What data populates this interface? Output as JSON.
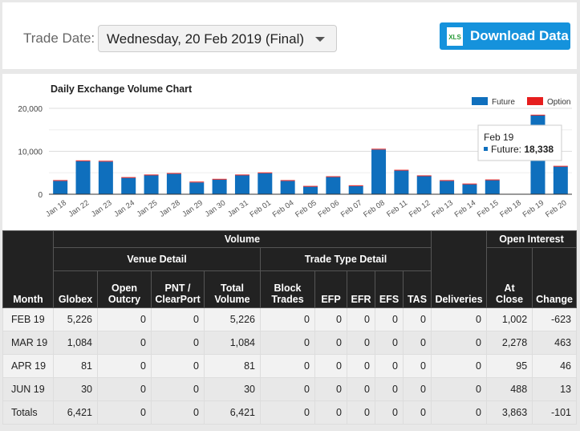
{
  "header": {
    "trade_date_label": "Trade Date:",
    "trade_date_value": "Wednesday, 20 Feb 2019 (Final)",
    "download_label": "Download Data",
    "xls_icon_text": "XLS"
  },
  "chart_data": {
    "type": "bar",
    "title": "Daily Exchange Volume Chart",
    "categories": [
      "Jan 18",
      "Jan 22",
      "Jan 23",
      "Jan 24",
      "Jan 25",
      "Jan 28",
      "Jan 29",
      "Jan 30",
      "Jan 31",
      "Feb 01",
      "Feb 04",
      "Feb 05",
      "Feb 06",
      "Feb 07",
      "Feb 08",
      "Feb 11",
      "Feb 12",
      "Feb 13",
      "Feb 14",
      "Feb 15",
      "Feb 18",
      "Feb 19",
      "Feb 20"
    ],
    "series": [
      {
        "name": "Future",
        "color": "#0f6fbd",
        "values": [
          3100,
          7700,
          7600,
          3800,
          4400,
          4750,
          2750,
          3400,
          4400,
          4900,
          3100,
          1750,
          4000,
          1900,
          10400,
          5500,
          4200,
          3100,
          2300,
          3250,
          0,
          18338,
          6421
        ]
      },
      {
        "name": "Option",
        "color": "#e61e1e",
        "values": [
          0,
          0,
          0,
          0,
          0,
          0,
          0,
          0,
          0,
          0,
          0,
          0,
          0,
          0,
          0,
          0,
          0,
          0,
          0,
          0,
          0,
          0,
          0
        ]
      }
    ],
    "yticks": [
      "0",
      "10,000",
      "20,000"
    ],
    "ylim": [
      0,
      20000
    ],
    "grid": true,
    "legend": "top-right",
    "tooltip": {
      "title": "Feb 19",
      "text": "Future: ",
      "value": "18,338"
    }
  },
  "table": {
    "h_month": "Month",
    "h_volume": "Volume",
    "h_venue": "Venue Detail",
    "h_trade": "Trade Type Detail",
    "h_deliveries": "Deliveries",
    "h_oi": "Open Interest",
    "cols": [
      "Globex",
      "Open Outcry",
      "PNT / ClearPort",
      "Total Volume",
      "Block Trades",
      "EFP",
      "EFR",
      "EFS",
      "TAS",
      "At Close",
      "Change"
    ],
    "rows": [
      [
        "FEB 19",
        "5,226",
        "0",
        "0",
        "5,226",
        "0",
        "0",
        "0",
        "0",
        "0",
        "0",
        "1,002",
        "-623"
      ],
      [
        "MAR 19",
        "1,084",
        "0",
        "0",
        "1,084",
        "0",
        "0",
        "0",
        "0",
        "0",
        "0",
        "2,278",
        "463"
      ],
      [
        "APR 19",
        "81",
        "0",
        "0",
        "81",
        "0",
        "0",
        "0",
        "0",
        "0",
        "0",
        "95",
        "46"
      ],
      [
        "JUN 19",
        "30",
        "0",
        "0",
        "30",
        "0",
        "0",
        "0",
        "0",
        "0",
        "0",
        "488",
        "13"
      ],
      [
        "Totals",
        "6,421",
        "0",
        "0",
        "6,421",
        "0",
        "0",
        "0",
        "0",
        "0",
        "0",
        "3,863",
        "-101"
      ]
    ]
  }
}
